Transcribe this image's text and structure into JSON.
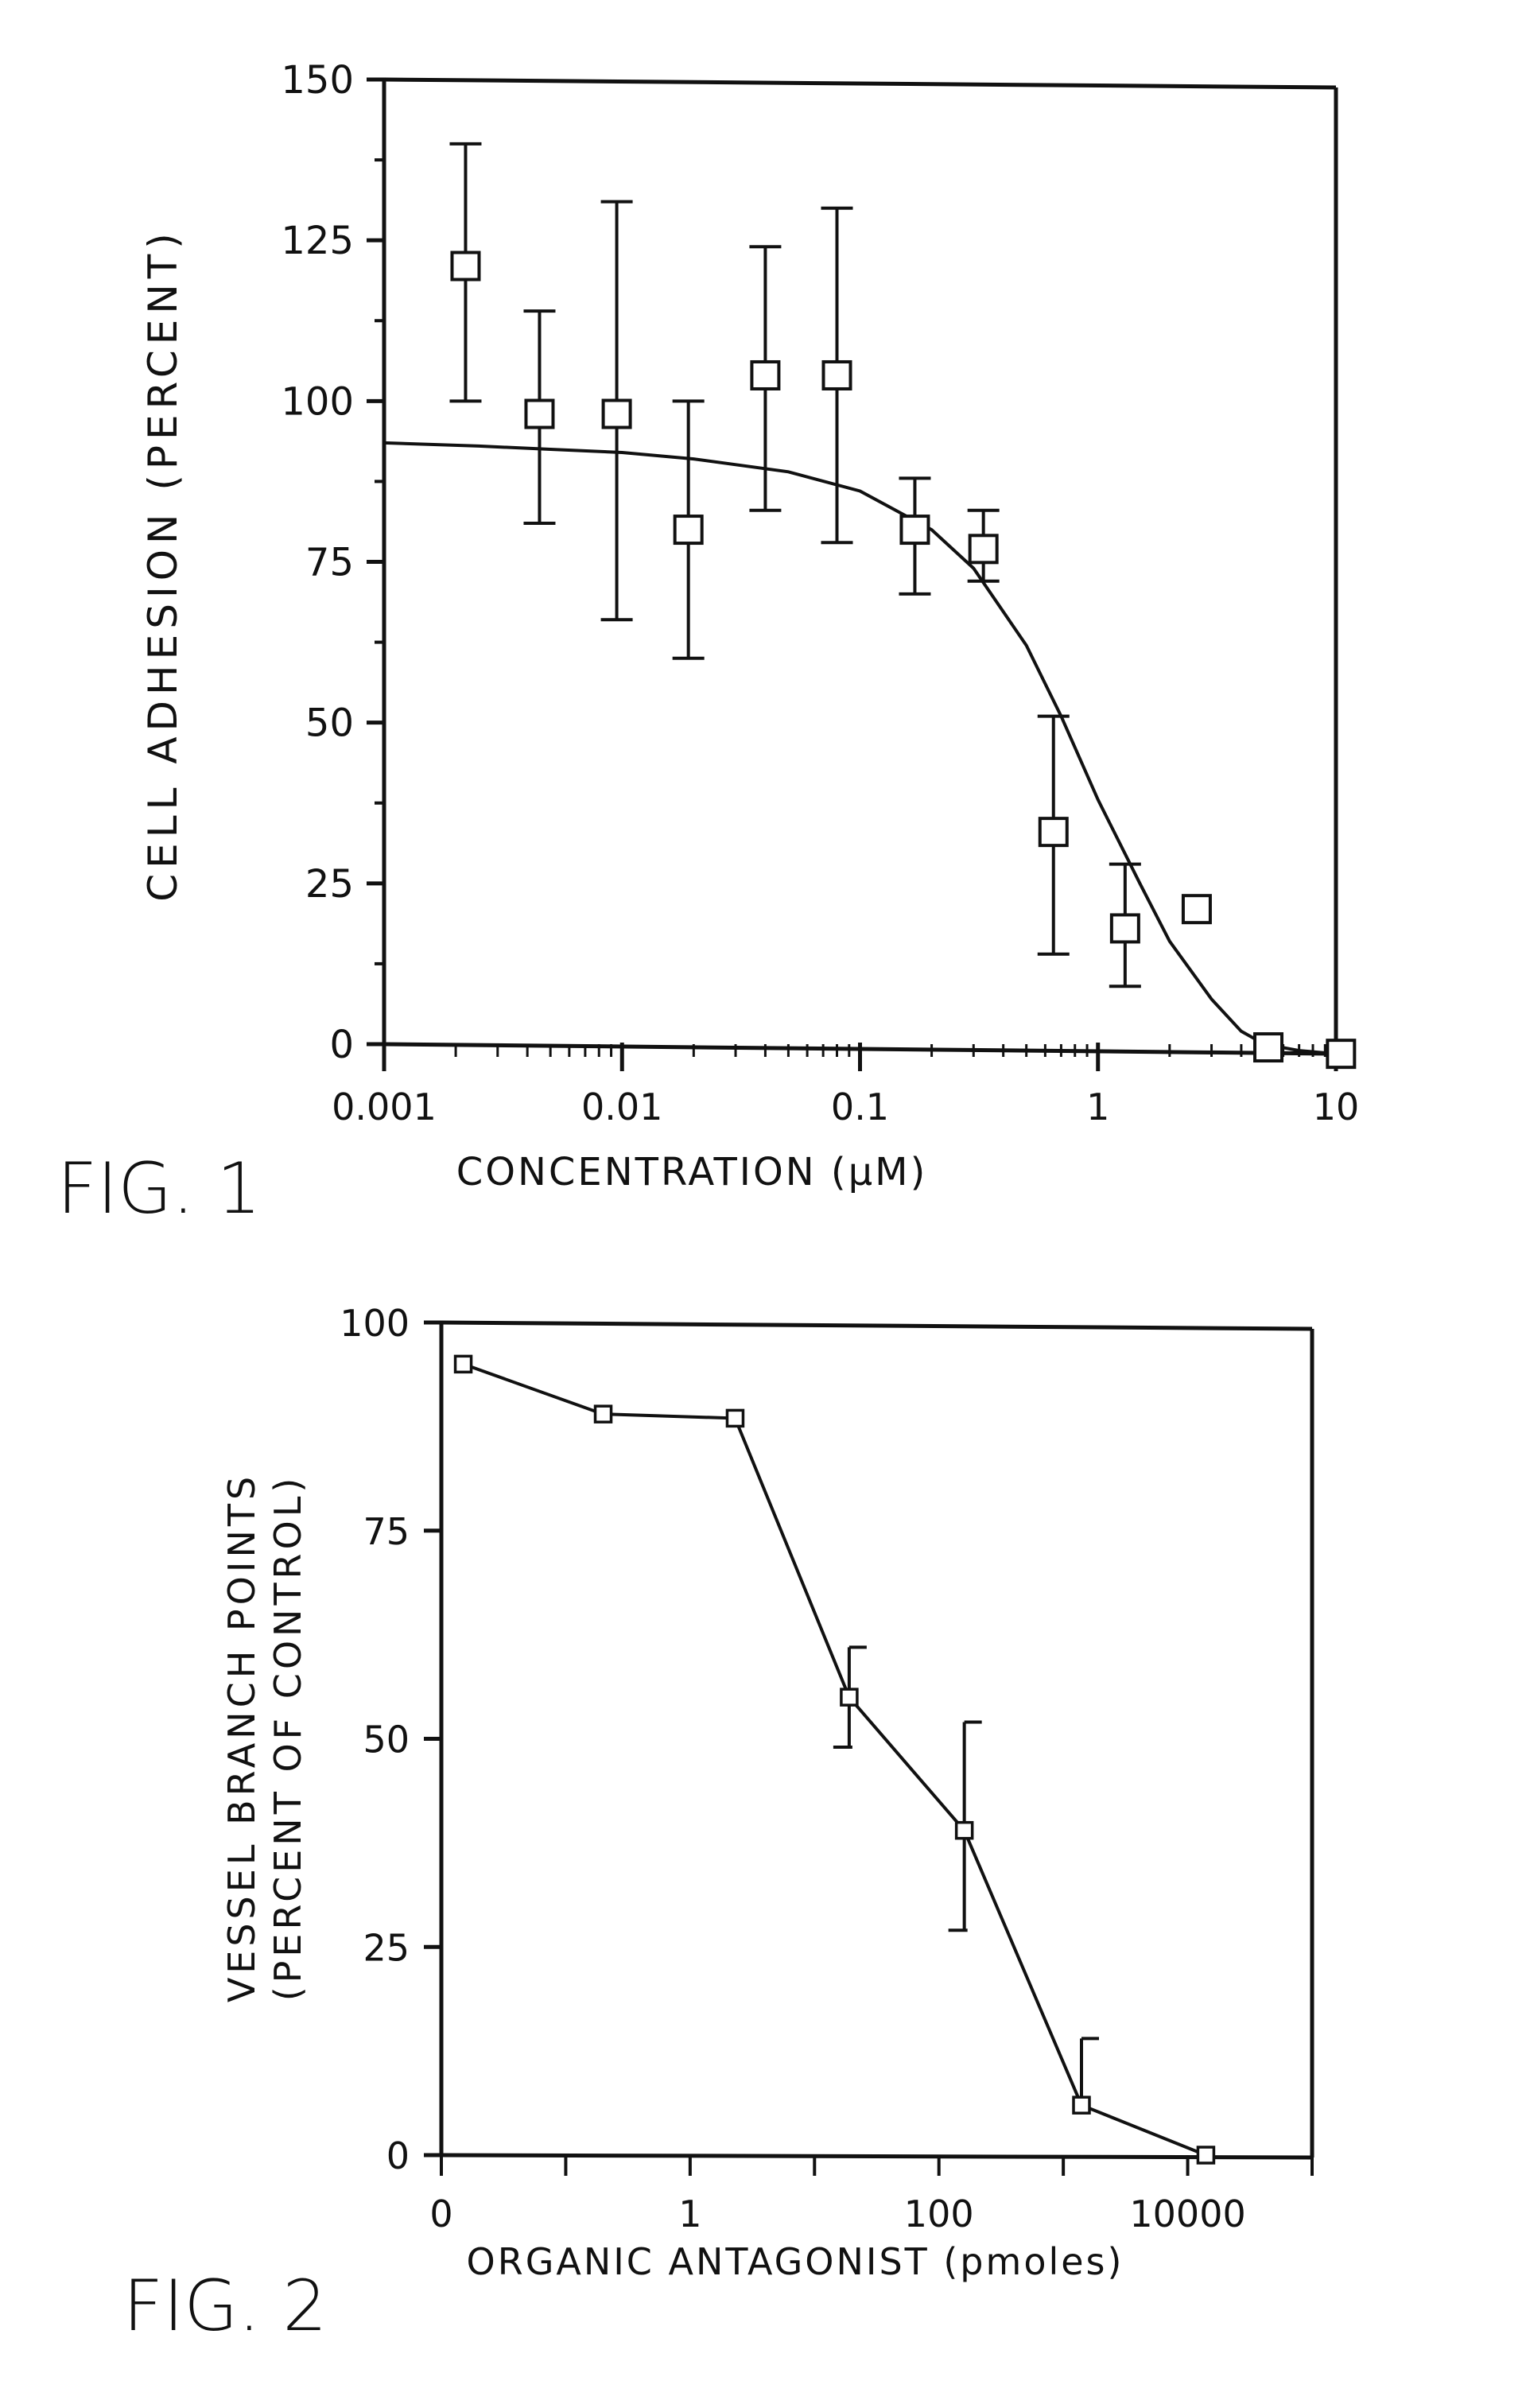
{
  "figures": {
    "fig1": {
      "label": "FIG. 1",
      "ylabel": "CELL ADHESION (PERCENT)",
      "xlabel": "CONCENTRATION (μM)",
      "yticks": [
        "150",
        "125",
        "100",
        "75",
        "50",
        "25",
        "0"
      ],
      "xticks": [
        "0.001",
        "0.01",
        "0.1",
        "1",
        "10"
      ]
    },
    "fig2": {
      "label": "FIG. 2",
      "ylabel_line1": "VESSEL BRANCH POINTS",
      "ylabel_line2": "(PERCENT OF CONTROL)",
      "xlabel": "ORGANIC ANTAGONIST (pmoles)",
      "yticks": [
        "100",
        "75",
        "50",
        "25",
        "0"
      ],
      "xticks": [
        "0",
        "1",
        "100",
        "10000"
      ]
    }
  },
  "chart_data": [
    {
      "type": "scatter",
      "title": "",
      "xlabel": "CONCENTRATION (μM)",
      "ylabel": "CELL ADHESION (PERCENT)",
      "x_scale": "log",
      "xlim": [
        0.001,
        10
      ],
      "ylim": [
        0,
        150
      ],
      "grid": false,
      "points": [
        {
          "x": 0.0022,
          "y": 121,
          "err_low": 100,
          "err_high": 140
        },
        {
          "x": 0.0045,
          "y": 98,
          "err_low": 81,
          "err_high": 114
        },
        {
          "x": 0.0095,
          "y": 98,
          "err_low": 66,
          "err_high": 131
        },
        {
          "x": 0.019,
          "y": 80,
          "err_low": 60,
          "err_high": 100
        },
        {
          "x": 0.04,
          "y": 104,
          "err_low": 83,
          "err_high": 124
        },
        {
          "x": 0.08,
          "y": 104,
          "err_low": 78,
          "err_high": 130
        },
        {
          "x": 0.17,
          "y": 80,
          "err_low": 70,
          "err_high": 88
        },
        {
          "x": 0.33,
          "y": 77,
          "err_low": 72,
          "err_high": 83
        },
        {
          "x": 0.65,
          "y": 33,
          "err_low": 14,
          "err_high": 51
        },
        {
          "x": 1.3,
          "y": 18,
          "err_low": 9,
          "err_high": 28
        },
        {
          "x": 2.6,
          "y": 21
        },
        {
          "x": 5.2,
          "y": -0.5
        },
        {
          "x": 10.5,
          "y": -1.5
        }
      ],
      "fit_curve": [
        [
          0.001,
          93.5
        ],
        [
          0.0025,
          93
        ],
        [
          0.005,
          92.5
        ],
        [
          0.01,
          92
        ],
        [
          0.02,
          91
        ],
        [
          0.05,
          89
        ],
        [
          0.1,
          86
        ],
        [
          0.2,
          80
        ],
        [
          0.3,
          74
        ],
        [
          0.5,
          62
        ],
        [
          0.7,
          51
        ],
        [
          1.0,
          38
        ],
        [
          1.5,
          25
        ],
        [
          2.0,
          16
        ],
        [
          3.0,
          7
        ],
        [
          4.0,
          2
        ],
        [
          5.0,
          0
        ],
        [
          7.0,
          -1
        ],
        [
          10.0,
          -1.5
        ]
      ]
    },
    {
      "type": "line",
      "title": "",
      "xlabel": "ORGANIC ANTAGONIST (pmoles)",
      "ylabel": "VESSEL BRANCH POINTS (PERCENT OF CONTROL)",
      "x_scale": "log",
      "xlim": [
        0.01,
        100000
      ],
      "ylim": [
        0,
        100
      ],
      "grid": false,
      "points": [
        {
          "x": 0.015,
          "y": 95
        },
        {
          "x": 0.2,
          "y": 89
        },
        {
          "x": 2.3,
          "y": 88.5
        },
        {
          "x": 19,
          "y": 55,
          "err_low": 49,
          "err_high": 61
        },
        {
          "x": 160,
          "y": 39,
          "err_low": 27,
          "err_high": 52
        },
        {
          "x": 1400,
          "y": 6,
          "err_high": 14
        },
        {
          "x": 14000,
          "y": 0
        }
      ]
    }
  ]
}
